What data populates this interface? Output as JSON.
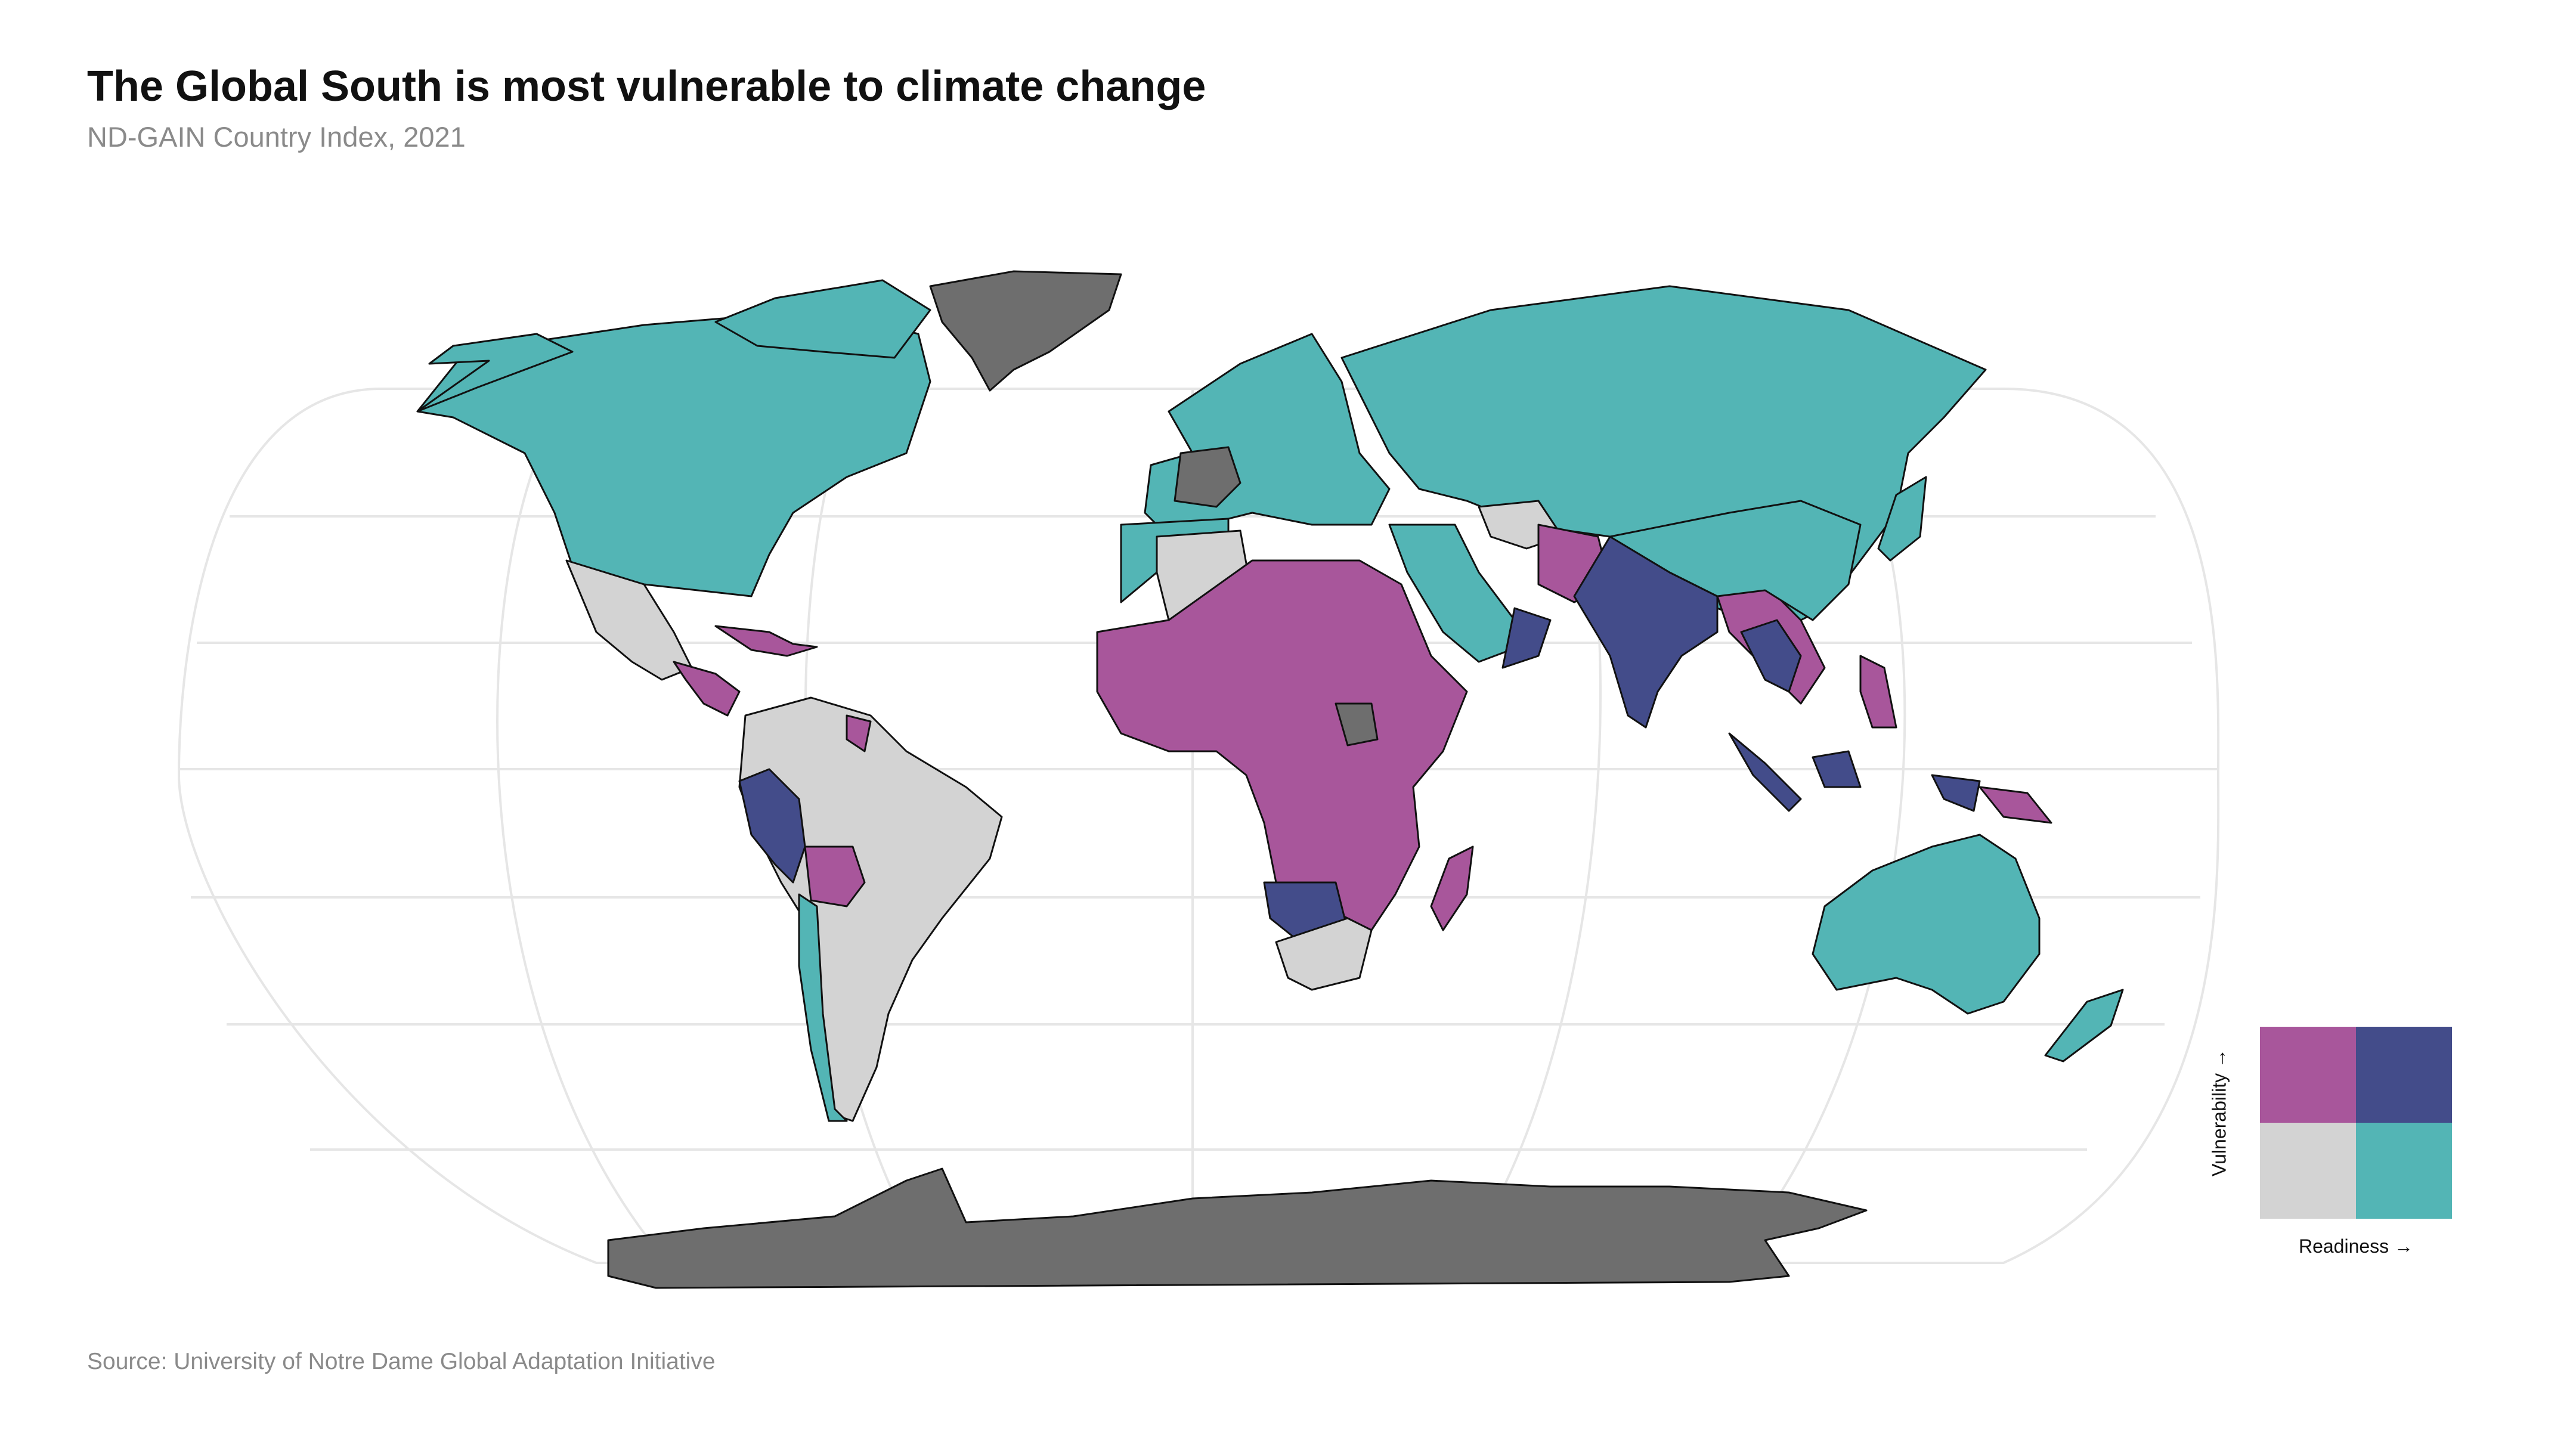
{
  "title": "The Global South is most vulnerable to climate change",
  "subtitle": "ND-GAIN  Country Index, 2021",
  "caption": "Source: University of Notre Dame Global Adaptation Initiative",
  "colors": {
    "high_vulnerability_low_readiness": "#a8569b",
    "high_vulnerability_high_readiness": "#434c8a",
    "low_vulnerability_low_readiness": "#d3d3d3",
    "low_vulnerability_high_readiness": "#53b5b5",
    "no_data": "#6e6e6e",
    "graticule": "#e6e6e6",
    "border": "#111111"
  },
  "legend": {
    "y_label": "Vulnerability →",
    "x_label": "Readiness →",
    "cells": [
      {
        "vulnerability": "high",
        "readiness": "low",
        "color": "#a8569b"
      },
      {
        "vulnerability": "high",
        "readiness": "high",
        "color": "#434c8a"
      },
      {
        "vulnerability": "low",
        "readiness": "low",
        "color": "#d3d3d3"
      },
      {
        "vulnerability": "low",
        "readiness": "high",
        "color": "#53b5b5"
      }
    ]
  }
}
